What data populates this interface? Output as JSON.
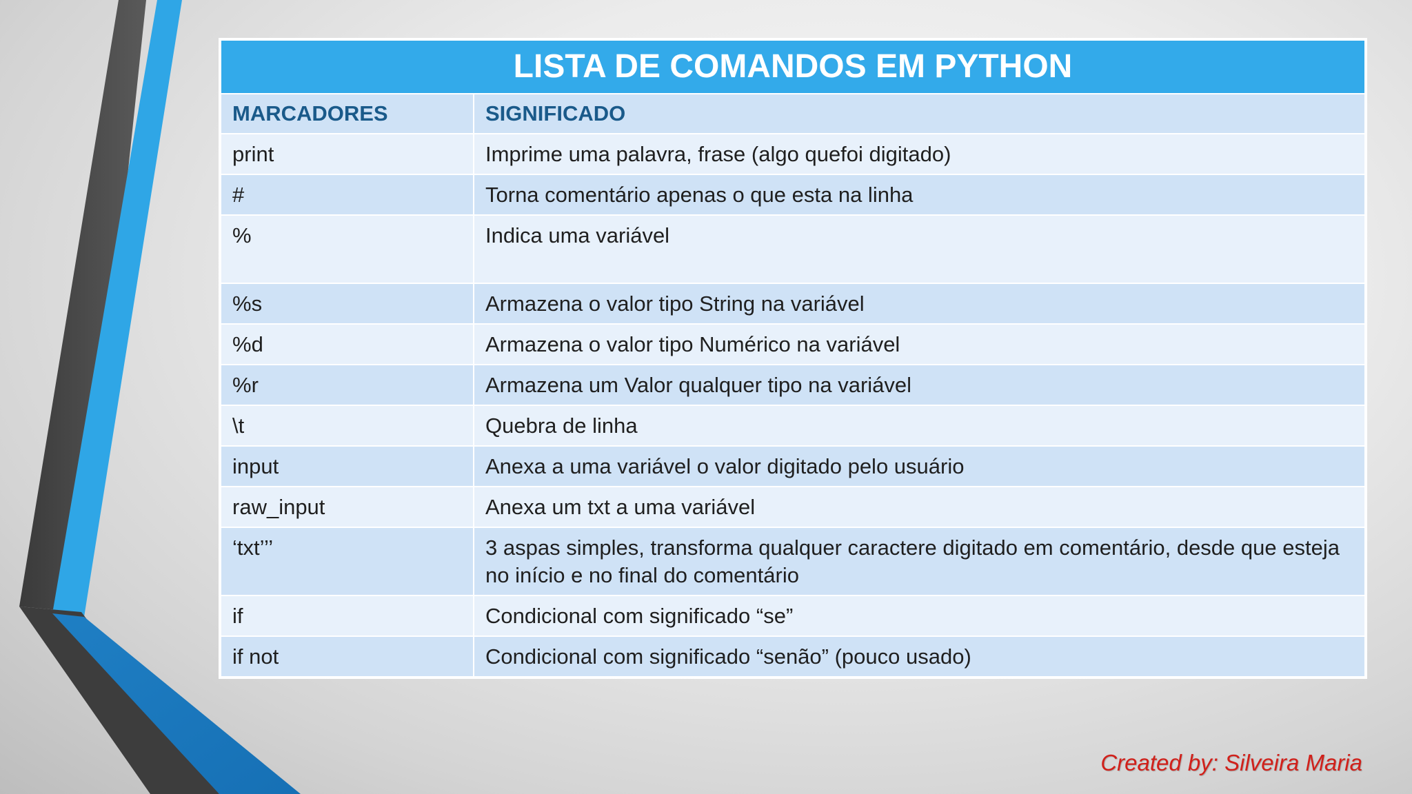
{
  "colors": {
    "title_bg": "#33aaea",
    "header_text": "#1a5a8a",
    "row_light": "#e8f1fb",
    "row_dark": "#cfe2f6",
    "credit_text": "#d1201a",
    "stripe_blue": "#2fa6e6",
    "stripe_gray": "#4a4a4a"
  },
  "table": {
    "title": "LISTA DE COMANDOS EM PYTHON",
    "headers": [
      "MARCADORES",
      "SIGNIFICADO"
    ],
    "rows": [
      {
        "marker": "print",
        "meaning": "Imprime uma palavra, frase (algo quefoi digitado)"
      },
      {
        "marker": "#",
        "meaning": "Torna comentário apenas o que esta na linha"
      },
      {
        "marker": "%",
        "meaning": "Indica uma variável"
      },
      {
        "marker": "%s",
        "meaning": "Armazena o valor tipo String na variável"
      },
      {
        "marker": "%d",
        "meaning": "Armazena o valor tipo Numérico na variável"
      },
      {
        "marker": "%r",
        "meaning": "Armazena um Valor qualquer tipo na variável"
      },
      {
        "marker": "\\t",
        "meaning": "Quebra de linha"
      },
      {
        "marker": "input",
        "meaning": "Anexa a uma variável o valor digitado pelo usuário"
      },
      {
        "marker": "raw_input",
        "meaning": "Anexa um txt a uma variável"
      },
      {
        "marker": "‘txt’’’",
        "meaning": "3 aspas simples, transforma qualquer caractere digitado em comentário, desde que esteja no início e no final do comentário"
      },
      {
        "marker": "if",
        "meaning": "Condicional com significado “se”"
      },
      {
        "marker": "if not",
        "meaning": "Condicional com significado “senão” (pouco usado)"
      }
    ]
  },
  "credit": "Created by: Silveira Maria"
}
